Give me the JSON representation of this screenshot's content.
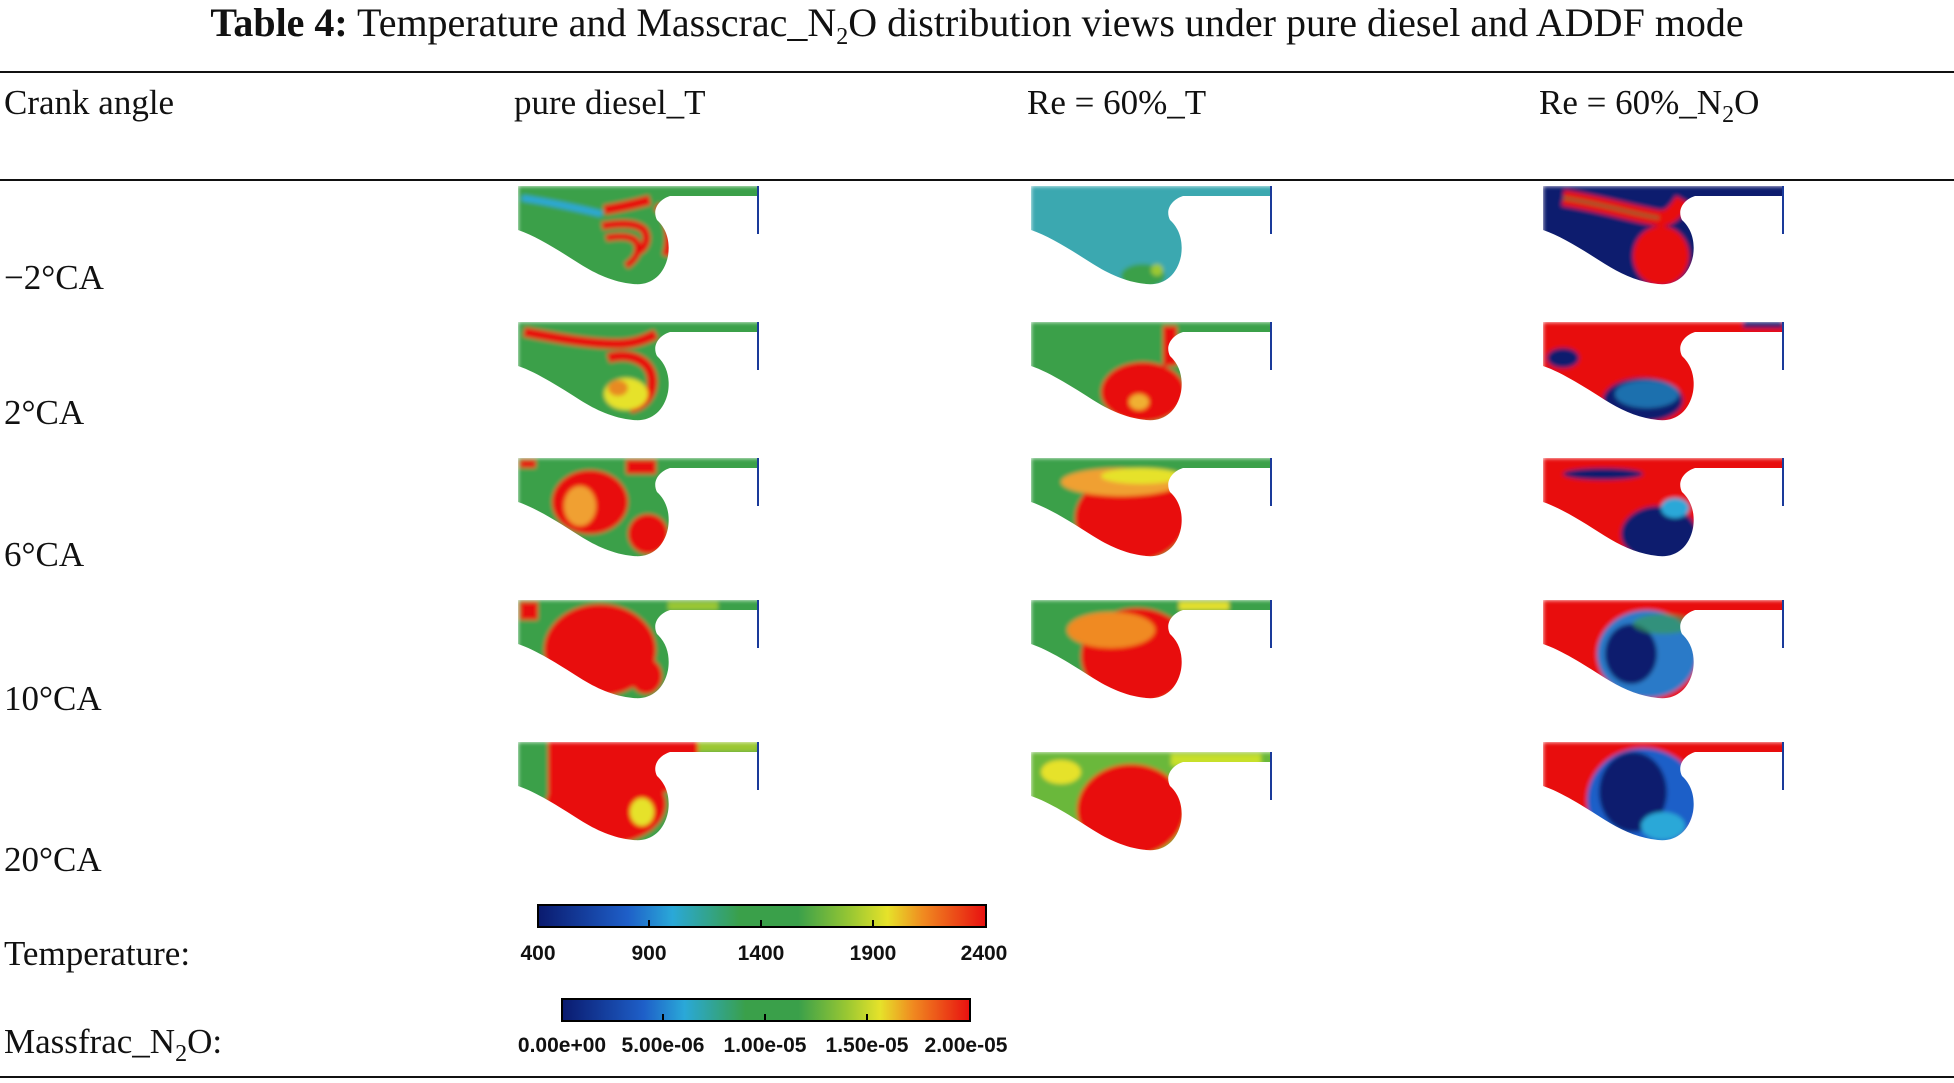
{
  "table": {
    "label": "Table 4:",
    "caption_before_sub": "Temperature and Masscrac_N",
    "caption_sub": "2",
    "caption_after_sub": "O distribution views under pure diesel and ADDF mode"
  },
  "columns": {
    "crank_angle": "Crank angle",
    "pure_diesel_t": "pure diesel_T",
    "re60_t": "Re = 60%_T",
    "re60_n2o_before": "Re = 60%_N",
    "re60_n2o_sub": "2",
    "re60_n2o_after": "O"
  },
  "rows": [
    {
      "angle": "−2°CA"
    },
    {
      "angle": "2°CA"
    },
    {
      "angle": "6°CA"
    },
    {
      "angle": "10°CA"
    },
    {
      "angle": "20°CA"
    }
  ],
  "legend": {
    "temperature_label": "Temperature:",
    "temperature_ticks": [
      "400",
      "900",
      "1400",
      "1900",
      "2400"
    ],
    "n2o_label_before": "Massfrac_N",
    "n2o_label_sub": "2",
    "n2o_label_after": "O:",
    "n2o_ticks": [
      "0.00e+00",
      "5.00e-06",
      "1.00e-05",
      "1.50e-05",
      "2.00e-05"
    ]
  },
  "colors": {
    "dark_blue": "#0a1a6e",
    "cyan": "#2aa8d8",
    "green": "#3aa04a",
    "yellow": "#e6e22a",
    "red": "#e81010"
  }
}
